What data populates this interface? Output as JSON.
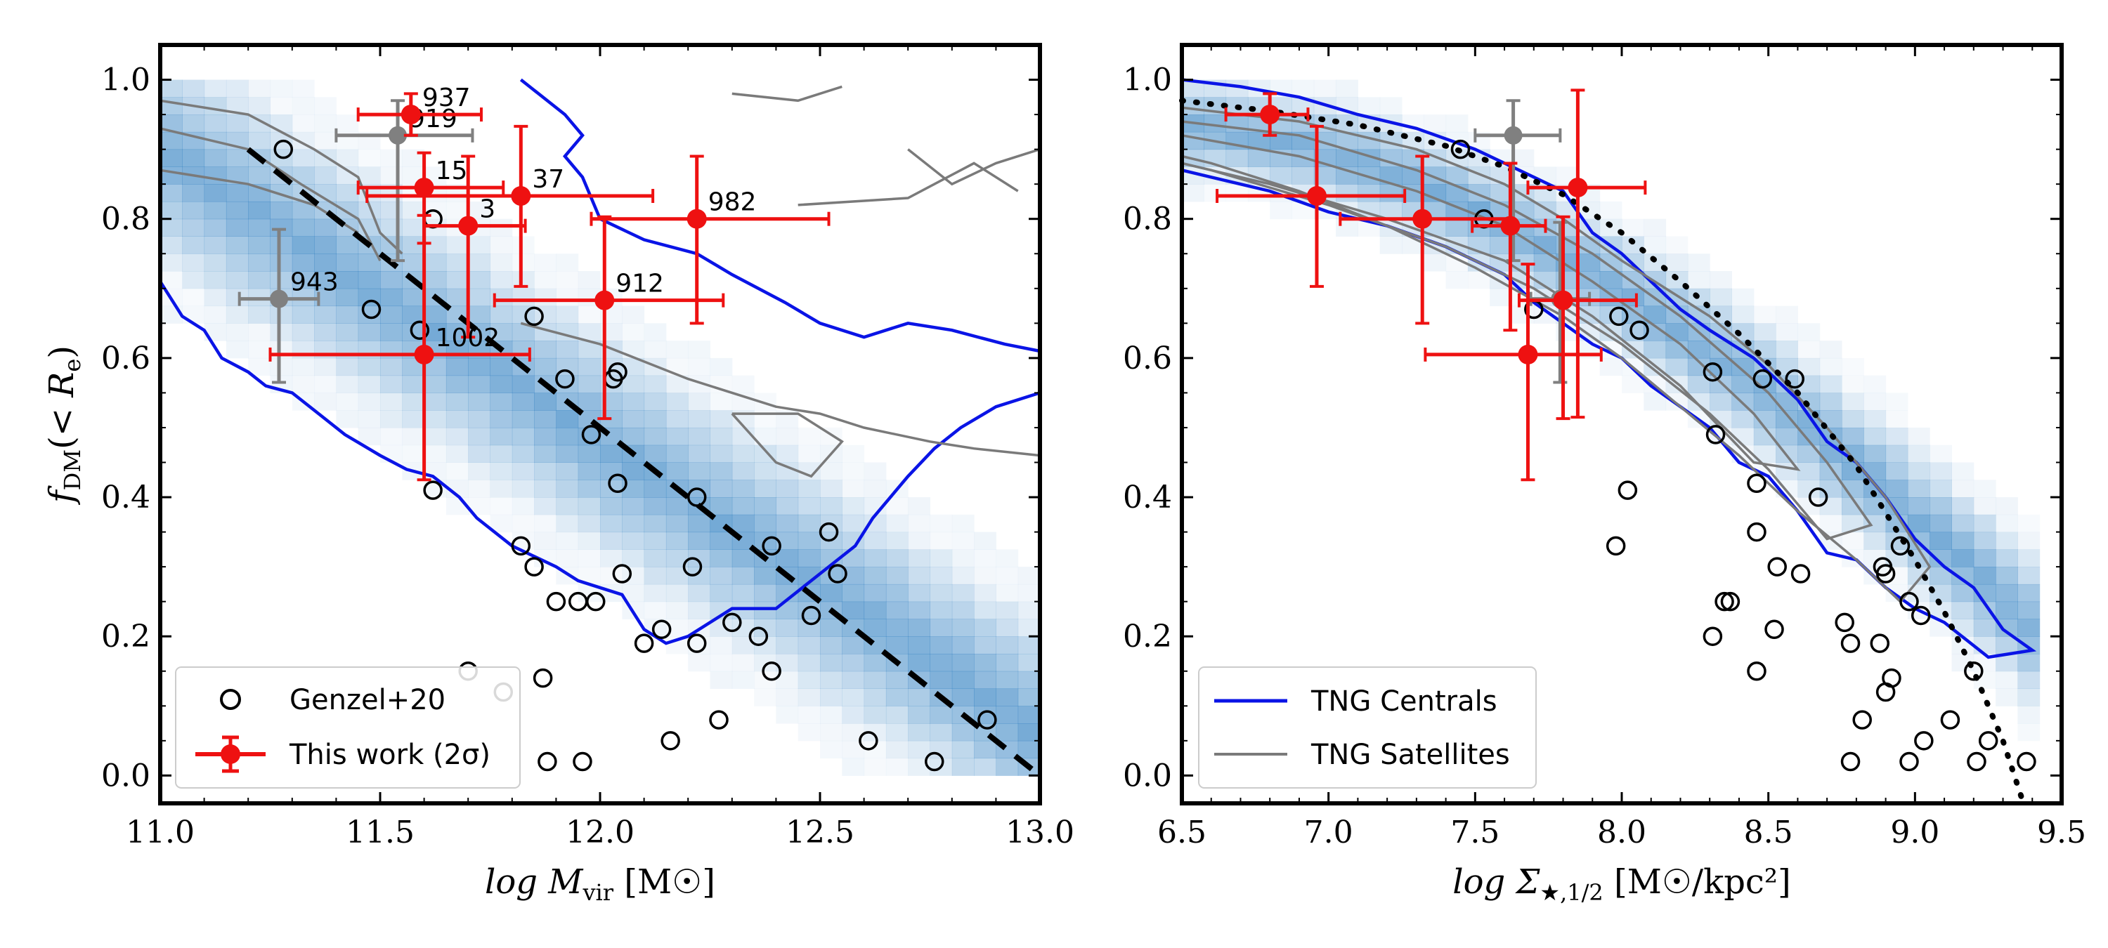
{
  "chart_data": [
    {
      "type": "scatter",
      "panel": "left",
      "xlabel": "log M_vir [M☉]",
      "ylabel": "f_DM(< R_e)",
      "xlim": [
        11.0,
        13.0
      ],
      "ylim": [
        -0.04,
        1.05
      ],
      "xticks": [
        11.0,
        11.5,
        12.0,
        12.5,
        13.0
      ],
      "xtick_labels": [
        "11.0",
        "11.5",
        "12.0",
        "12.5",
        "13.0"
      ],
      "yticks": [
        0.0,
        0.2,
        0.4,
        0.6,
        0.8,
        1.0
      ],
      "ytick_labels": [
        "0.0",
        "0.2",
        "0.4",
        "0.6",
        "0.8",
        "1.0"
      ],
      "legend": {
        "position": "lower-left",
        "entries": [
          "Genzel+20",
          "This work (2σ)"
        ]
      },
      "colors": {
        "this_work": "#ee1111",
        "gray_points": "#808080",
        "centrals": "#0a14e6",
        "satellites": "#7a7a7a",
        "heatmap": "#2f7fc1"
      },
      "this_work": [
        {
          "label": "937",
          "x": 11.57,
          "y": 0.95,
          "xerr": [
            0.12,
            0.16
          ],
          "yerr": [
            0.03,
            0.03
          ]
        },
        {
          "label": "15",
          "x": 11.6,
          "y": 0.845,
          "xerr": [
            0.15,
            0.18
          ],
          "yerr": [
            0.08,
            0.05
          ]
        },
        {
          "label": "37",
          "x": 11.82,
          "y": 0.833,
          "xerr": [
            0.35,
            0.3
          ],
          "yerr": [
            0.13,
            0.1
          ]
        },
        {
          "label": "3",
          "x": 11.7,
          "y": 0.79,
          "xerr": [
            0.1,
            0.13
          ],
          "yerr": [
            0.16,
            0.1
          ]
        },
        {
          "label": "982",
          "x": 12.22,
          "y": 0.8,
          "xerr": [
            0.24,
            0.3
          ],
          "yerr": [
            0.15,
            0.09
          ]
        },
        {
          "label": "912",
          "x": 12.01,
          "y": 0.683,
          "xerr": [
            0.25,
            0.27
          ],
          "yerr": [
            0.17,
            0.12
          ]
        },
        {
          "label": "1002",
          "x": 11.6,
          "y": 0.605,
          "xerr": [
            0.35,
            0.24
          ],
          "yerr": [
            0.18,
            0.2
          ]
        }
      ],
      "gray_points": [
        {
          "label": "919",
          "x": 11.54,
          "y": 0.92,
          "xerr": [
            0.14,
            0.17
          ],
          "yerr": [
            0.18,
            0.05
          ]
        },
        {
          "label": "943",
          "x": 11.27,
          "y": 0.685,
          "xerr": [
            0.09,
            0.09
          ],
          "yerr": [
            0.12,
            0.1
          ]
        }
      ],
      "genzel20": [
        [
          11.28,
          0.9
        ],
        [
          11.62,
          0.8
        ],
        [
          11.48,
          0.67
        ],
        [
          11.59,
          0.64
        ],
        [
          11.62,
          0.41
        ],
        [
          11.85,
          0.66
        ],
        [
          11.92,
          0.57
        ],
        [
          11.98,
          0.49
        ],
        [
          12.03,
          0.57
        ],
        [
          12.04,
          0.58
        ],
        [
          12.04,
          0.42
        ],
        [
          12.05,
          0.29
        ],
        [
          11.82,
          0.33
        ],
        [
          11.85,
          0.3
        ],
        [
          11.9,
          0.25
        ],
        [
          11.95,
          0.25
        ],
        [
          11.99,
          0.25
        ],
        [
          12.1,
          0.19
        ],
        [
          12.14,
          0.21
        ],
        [
          12.21,
          0.3
        ],
        [
          12.22,
          0.4
        ],
        [
          12.22,
          0.19
        ],
        [
          12.3,
          0.22
        ],
        [
          12.36,
          0.2
        ],
        [
          12.39,
          0.33
        ],
        [
          12.39,
          0.15
        ],
        [
          12.52,
          0.35
        ],
        [
          12.54,
          0.29
        ],
        [
          12.48,
          0.23
        ],
        [
          11.7,
          0.15
        ],
        [
          11.78,
          0.12
        ],
        [
          11.87,
          0.14
        ],
        [
          11.88,
          0.02
        ],
        [
          11.96,
          0.02
        ],
        [
          12.16,
          0.05
        ],
        [
          12.27,
          0.08
        ],
        [
          12.61,
          0.05
        ],
        [
          12.76,
          0.02
        ],
        [
          12.88,
          0.08
        ]
      ],
      "fit_line": {
        "x": [
          11.2,
          13.0
        ],
        "y": [
          0.9,
          0.0
        ]
      }
    },
    {
      "type": "scatter",
      "panel": "right",
      "xlabel": "log Σ★,1/2 [M☉/kpc²]",
      "xlim": [
        6.5,
        9.5
      ],
      "ylim": [
        -0.04,
        1.05
      ],
      "xticks": [
        6.5,
        7.0,
        7.5,
        8.0,
        8.5,
        9.0,
        9.5
      ],
      "xtick_labels": [
        "6.5",
        "7.0",
        "7.5",
        "8.0",
        "8.5",
        "9.0",
        "9.5"
      ],
      "yticks": [
        0.0,
        0.2,
        0.4,
        0.6,
        0.8,
        1.0
      ],
      "ytick_labels": [
        "0.0",
        "0.2",
        "0.4",
        "0.6",
        "0.8",
        "1.0"
      ],
      "legend": {
        "position": "lower-left",
        "entries": [
          "TNG Centrals",
          "TNG Satellites"
        ]
      },
      "this_work": [
        {
          "x": 6.8,
          "y": 0.95,
          "xerr": [
            0.15,
            0.13
          ],
          "yerr": [
            0.03,
            0.03
          ]
        },
        {
          "x": 6.96,
          "y": 0.833,
          "xerr": [
            0.34,
            0.3
          ],
          "yerr": [
            0.13,
            0.1
          ]
        },
        {
          "x": 7.32,
          "y": 0.8,
          "xerr": [
            0.28,
            0.3
          ],
          "yerr": [
            0.15,
            0.09
          ]
        },
        {
          "x": 7.62,
          "y": 0.79,
          "xerr": [
            0.13,
            0.12
          ],
          "yerr": [
            0.15,
            0.09
          ]
        },
        {
          "x": 7.85,
          "y": 0.845,
          "xerr": [
            0.17,
            0.23
          ],
          "yerr": [
            0.33,
            0.14
          ]
        },
        {
          "x": 7.68,
          "y": 0.605,
          "xerr": [
            0.35,
            0.25
          ],
          "yerr": [
            0.18,
            0.13
          ]
        },
        {
          "x": 7.8,
          "y": 0.683,
          "xerr": [
            0.15,
            0.25
          ],
          "yerr": [
            0.17,
            0.12
          ]
        }
      ],
      "gray_points": [
        {
          "x": 7.63,
          "y": 0.92,
          "xerr": [
            0.13,
            0.16
          ],
          "yerr": [
            0.18,
            0.05
          ]
        },
        {
          "x": 7.79,
          "y": 0.685,
          "xerr": [
            0.1,
            0.1
          ],
          "yerr": [
            0.12,
            0.11
          ]
        }
      ],
      "genzel20": [
        [
          7.45,
          0.9
        ],
        [
          7.53,
          0.8
        ],
        [
          7.7,
          0.67
        ],
        [
          7.99,
          0.66
        ],
        [
          8.06,
          0.64
        ],
        [
          8.31,
          0.58
        ],
        [
          8.48,
          0.57
        ],
        [
          8.59,
          0.57
        ],
        [
          8.32,
          0.49
        ],
        [
          8.46,
          0.42
        ],
        [
          8.67,
          0.4
        ],
        [
          8.02,
          0.41
        ],
        [
          7.98,
          0.33
        ],
        [
          8.46,
          0.35
        ],
        [
          8.53,
          0.3
        ],
        [
          8.61,
          0.29
        ],
        [
          8.89,
          0.3
        ],
        [
          8.9,
          0.29
        ],
        [
          8.95,
          0.33
        ],
        [
          8.98,
          0.25
        ],
        [
          9.02,
          0.23
        ],
        [
          8.35,
          0.25
        ],
        [
          8.37,
          0.25
        ],
        [
          8.31,
          0.2
        ],
        [
          8.52,
          0.21
        ],
        [
          8.46,
          0.15
        ],
        [
          8.76,
          0.22
        ],
        [
          8.78,
          0.19
        ],
        [
          8.88,
          0.19
        ],
        [
          8.92,
          0.14
        ],
        [
          8.9,
          0.12
        ],
        [
          8.82,
          0.08
        ],
        [
          8.78,
          0.02
        ],
        [
          8.98,
          0.02
        ],
        [
          9.03,
          0.05
        ],
        [
          9.12,
          0.08
        ],
        [
          9.2,
          0.15
        ],
        [
          9.21,
          0.02
        ],
        [
          9.25,
          0.05
        ],
        [
          9.38,
          0.02
        ]
      ],
      "dotted_curve": {
        "x": [
          6.5,
          6.8,
          7.1,
          7.4,
          7.6,
          7.8,
          8.0,
          8.2,
          8.4,
          8.6,
          8.8,
          9.0,
          9.1,
          9.2,
          9.3,
          9.37
        ],
        "y": [
          0.97,
          0.955,
          0.935,
          0.905,
          0.875,
          0.835,
          0.78,
          0.71,
          0.635,
          0.55,
          0.445,
          0.31,
          0.235,
          0.15,
          0.05,
          -0.04
        ]
      }
    }
  ]
}
